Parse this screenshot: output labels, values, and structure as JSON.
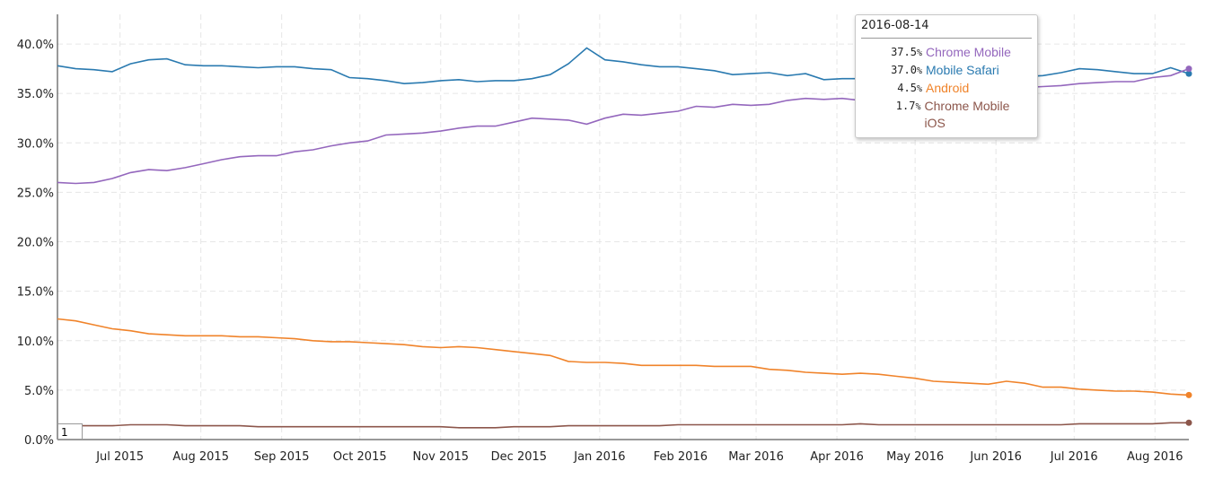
{
  "chart_data": {
    "type": "line",
    "title": "",
    "xlabel": "",
    "ylabel": "",
    "ylim": [
      0,
      43
    ],
    "yticks": [
      "0.0%",
      "5.0%",
      "10.0%",
      "15.0%",
      "20.0%",
      "25.0%",
      "30.0%",
      "35.0%",
      "40.0%"
    ],
    "ytick_values": [
      0,
      5,
      10,
      15,
      20,
      25,
      30,
      35,
      40
    ],
    "xlim": [
      "2015-06-07",
      "2016-08-14"
    ],
    "xticks": [
      {
        "label": "Jul 2015",
        "date": "2015-07-01"
      },
      {
        "label": "Aug 2015",
        "date": "2015-08-01"
      },
      {
        "label": "Sep 2015",
        "date": "2015-09-01"
      },
      {
        "label": "Oct 2015",
        "date": "2015-10-01"
      },
      {
        "label": "Nov 2015",
        "date": "2015-11-01"
      },
      {
        "label": "Dec 2015",
        "date": "2015-12-01"
      },
      {
        "label": "Jan 2016",
        "date": "2016-01-01"
      },
      {
        "label": "Feb 2016",
        "date": "2016-02-01"
      },
      {
        "label": "Mar 2016",
        "date": "2016-03-01"
      },
      {
        "label": "Apr 2016",
        "date": "2016-04-01"
      },
      {
        "label": "May 2016",
        "date": "2016-05-01"
      },
      {
        "label": "Jun 2016",
        "date": "2016-06-01"
      },
      {
        "label": "Jul 2016",
        "date": "2016-07-01"
      },
      {
        "label": "Aug 2016",
        "date": "2016-08-01"
      }
    ],
    "grid": true,
    "series": [
      {
        "name": "Mobile Safari",
        "color": "#2a7ab0",
        "points": [
          [
            "2015-06-07",
            37.8
          ],
          [
            "2015-06-14",
            37.5
          ],
          [
            "2015-06-21",
            37.4
          ],
          [
            "2015-06-28",
            37.2
          ],
          [
            "2015-07-05",
            38.0
          ],
          [
            "2015-07-12",
            38.4
          ],
          [
            "2015-07-19",
            38.5
          ],
          [
            "2015-07-26",
            37.9
          ],
          [
            "2015-08-02",
            37.8
          ],
          [
            "2015-08-09",
            37.8
          ],
          [
            "2015-08-16",
            37.7
          ],
          [
            "2015-08-23",
            37.6
          ],
          [
            "2015-08-30",
            37.7
          ],
          [
            "2015-09-06",
            37.7
          ],
          [
            "2015-09-13",
            37.5
          ],
          [
            "2015-09-20",
            37.4
          ],
          [
            "2015-09-27",
            36.6
          ],
          [
            "2015-10-04",
            36.5
          ],
          [
            "2015-10-11",
            36.3
          ],
          [
            "2015-10-18",
            36.0
          ],
          [
            "2015-10-25",
            36.1
          ],
          [
            "2015-11-01",
            36.3
          ],
          [
            "2015-11-08",
            36.4
          ],
          [
            "2015-11-15",
            36.2
          ],
          [
            "2015-11-22",
            36.3
          ],
          [
            "2015-11-29",
            36.3
          ],
          [
            "2015-12-06",
            36.5
          ],
          [
            "2015-12-13",
            36.9
          ],
          [
            "2015-12-20",
            38.0
          ],
          [
            "2015-12-27",
            39.6
          ],
          [
            "2016-01-03",
            38.4
          ],
          [
            "2016-01-10",
            38.2
          ],
          [
            "2016-01-17",
            37.9
          ],
          [
            "2016-01-24",
            37.7
          ],
          [
            "2016-01-31",
            37.7
          ],
          [
            "2016-02-07",
            37.5
          ],
          [
            "2016-02-14",
            37.3
          ],
          [
            "2016-02-21",
            36.9
          ],
          [
            "2016-02-28",
            37.0
          ],
          [
            "2016-03-06",
            37.1
          ],
          [
            "2016-03-13",
            36.8
          ],
          [
            "2016-03-20",
            37.0
          ],
          [
            "2016-03-27",
            36.4
          ],
          [
            "2016-04-03",
            36.5
          ],
          [
            "2016-04-10",
            36.5
          ],
          [
            "2016-04-17",
            36.5
          ],
          [
            "2016-04-24",
            36.6
          ],
          [
            "2016-05-01",
            36.6
          ],
          [
            "2016-05-08",
            36.6
          ],
          [
            "2016-05-15",
            36.7
          ],
          [
            "2016-05-22",
            36.7
          ],
          [
            "2016-05-29",
            36.7
          ],
          [
            "2016-06-05",
            36.8
          ],
          [
            "2016-06-12",
            36.7
          ],
          [
            "2016-06-19",
            36.8
          ],
          [
            "2016-06-26",
            37.1
          ],
          [
            "2016-07-03",
            37.5
          ],
          [
            "2016-07-10",
            37.4
          ],
          [
            "2016-07-17",
            37.2
          ],
          [
            "2016-07-24",
            37.0
          ],
          [
            "2016-07-31",
            37.0
          ],
          [
            "2016-08-07",
            37.6
          ],
          [
            "2016-08-14",
            37.0
          ]
        ]
      },
      {
        "name": "Chrome Mobile",
        "color": "#9467bd",
        "points": [
          [
            "2015-06-07",
            26.0
          ],
          [
            "2015-06-14",
            25.9
          ],
          [
            "2015-06-21",
            26.0
          ],
          [
            "2015-06-28",
            26.4
          ],
          [
            "2015-07-05",
            27.0
          ],
          [
            "2015-07-12",
            27.3
          ],
          [
            "2015-07-19",
            27.2
          ],
          [
            "2015-07-26",
            27.5
          ],
          [
            "2015-08-02",
            27.9
          ],
          [
            "2015-08-09",
            28.3
          ],
          [
            "2015-08-16",
            28.6
          ],
          [
            "2015-08-23",
            28.7
          ],
          [
            "2015-08-30",
            28.7
          ],
          [
            "2015-09-06",
            29.1
          ],
          [
            "2015-09-13",
            29.3
          ],
          [
            "2015-09-20",
            29.7
          ],
          [
            "2015-09-27",
            30.0
          ],
          [
            "2015-10-04",
            30.2
          ],
          [
            "2015-10-11",
            30.8
          ],
          [
            "2015-10-18",
            30.9
          ],
          [
            "2015-10-25",
            31.0
          ],
          [
            "2015-11-01",
            31.2
          ],
          [
            "2015-11-08",
            31.5
          ],
          [
            "2015-11-15",
            31.7
          ],
          [
            "2015-11-22",
            31.7
          ],
          [
            "2015-11-29",
            32.1
          ],
          [
            "2015-12-06",
            32.5
          ],
          [
            "2015-12-13",
            32.4
          ],
          [
            "2015-12-20",
            32.3
          ],
          [
            "2015-12-27",
            31.9
          ],
          [
            "2016-01-03",
            32.5
          ],
          [
            "2016-01-10",
            32.9
          ],
          [
            "2016-01-17",
            32.8
          ],
          [
            "2016-01-24",
            33.0
          ],
          [
            "2016-01-31",
            33.2
          ],
          [
            "2016-02-07",
            33.7
          ],
          [
            "2016-02-14",
            33.6
          ],
          [
            "2016-02-21",
            33.9
          ],
          [
            "2016-02-28",
            33.8
          ],
          [
            "2016-03-06",
            33.9
          ],
          [
            "2016-03-13",
            34.3
          ],
          [
            "2016-03-20",
            34.5
          ],
          [
            "2016-03-27",
            34.4
          ],
          [
            "2016-04-03",
            34.5
          ],
          [
            "2016-04-10",
            34.3
          ],
          [
            "2016-04-17",
            34.5
          ],
          [
            "2016-04-24",
            34.7
          ],
          [
            "2016-05-01",
            34.8
          ],
          [
            "2016-05-08",
            35.0
          ],
          [
            "2016-05-15",
            35.1
          ],
          [
            "2016-05-22",
            35.3
          ],
          [
            "2016-05-29",
            35.4
          ],
          [
            "2016-06-05",
            35.5
          ],
          [
            "2016-06-12",
            35.6
          ],
          [
            "2016-06-19",
            35.7
          ],
          [
            "2016-06-26",
            35.8
          ],
          [
            "2016-07-03",
            36.0
          ],
          [
            "2016-07-10",
            36.1
          ],
          [
            "2016-07-17",
            36.2
          ],
          [
            "2016-07-24",
            36.2
          ],
          [
            "2016-07-31",
            36.6
          ],
          [
            "2016-08-07",
            36.8
          ],
          [
            "2016-08-14",
            37.5
          ]
        ]
      },
      {
        "name": "Android",
        "color": "#f0832a",
        "points": [
          [
            "2015-06-07",
            12.2
          ],
          [
            "2015-06-14",
            12.0
          ],
          [
            "2015-06-21",
            11.6
          ],
          [
            "2015-06-28",
            11.2
          ],
          [
            "2015-07-05",
            11.0
          ],
          [
            "2015-07-12",
            10.7
          ],
          [
            "2015-07-19",
            10.6
          ],
          [
            "2015-07-26",
            10.5
          ],
          [
            "2015-08-02",
            10.5
          ],
          [
            "2015-08-09",
            10.5
          ],
          [
            "2015-08-16",
            10.4
          ],
          [
            "2015-08-23",
            10.4
          ],
          [
            "2015-08-30",
            10.3
          ],
          [
            "2015-09-06",
            10.2
          ],
          [
            "2015-09-13",
            10.0
          ],
          [
            "2015-09-20",
            9.9
          ],
          [
            "2015-09-27",
            9.9
          ],
          [
            "2015-10-04",
            9.8
          ],
          [
            "2015-10-11",
            9.7
          ],
          [
            "2015-10-18",
            9.6
          ],
          [
            "2015-10-25",
            9.4
          ],
          [
            "2015-11-01",
            9.3
          ],
          [
            "2015-11-08",
            9.4
          ],
          [
            "2015-11-15",
            9.3
          ],
          [
            "2015-11-22",
            9.1
          ],
          [
            "2015-11-29",
            8.9
          ],
          [
            "2015-12-06",
            8.7
          ],
          [
            "2015-12-13",
            8.5
          ],
          [
            "2015-12-20",
            7.9
          ],
          [
            "2015-12-27",
            7.8
          ],
          [
            "2016-01-03",
            7.8
          ],
          [
            "2016-01-10",
            7.7
          ],
          [
            "2016-01-17",
            7.5
          ],
          [
            "2016-01-24",
            7.5
          ],
          [
            "2016-01-31",
            7.5
          ],
          [
            "2016-02-07",
            7.5
          ],
          [
            "2016-02-14",
            7.4
          ],
          [
            "2016-02-21",
            7.4
          ],
          [
            "2016-02-28",
            7.4
          ],
          [
            "2016-03-06",
            7.1
          ],
          [
            "2016-03-13",
            7.0
          ],
          [
            "2016-03-20",
            6.8
          ],
          [
            "2016-03-27",
            6.7
          ],
          [
            "2016-04-03",
            6.6
          ],
          [
            "2016-04-10",
            6.7
          ],
          [
            "2016-04-17",
            6.6
          ],
          [
            "2016-04-24",
            6.4
          ],
          [
            "2016-05-01",
            6.2
          ],
          [
            "2016-05-08",
            5.9
          ],
          [
            "2016-05-15",
            5.8
          ],
          [
            "2016-05-22",
            5.7
          ],
          [
            "2016-05-29",
            5.6
          ],
          [
            "2016-06-05",
            5.9
          ],
          [
            "2016-06-12",
            5.7
          ],
          [
            "2016-06-19",
            5.3
          ],
          [
            "2016-06-26",
            5.3
          ],
          [
            "2016-07-03",
            5.1
          ],
          [
            "2016-07-10",
            5.0
          ],
          [
            "2016-07-17",
            4.9
          ],
          [
            "2016-07-24",
            4.9
          ],
          [
            "2016-07-31",
            4.8
          ],
          [
            "2016-08-07",
            4.6
          ],
          [
            "2016-08-14",
            4.5
          ]
        ]
      },
      {
        "name": "Chrome Mobile iOS",
        "color": "#8c564b",
        "points": [
          [
            "2015-06-07",
            1.4
          ],
          [
            "2015-06-14",
            1.4
          ],
          [
            "2015-06-21",
            1.4
          ],
          [
            "2015-06-28",
            1.4
          ],
          [
            "2015-07-05",
            1.5
          ],
          [
            "2015-07-12",
            1.5
          ],
          [
            "2015-07-19",
            1.5
          ],
          [
            "2015-07-26",
            1.4
          ],
          [
            "2015-08-02",
            1.4
          ],
          [
            "2015-08-09",
            1.4
          ],
          [
            "2015-08-16",
            1.4
          ],
          [
            "2015-08-23",
            1.3
          ],
          [
            "2015-08-30",
            1.3
          ],
          [
            "2015-09-06",
            1.3
          ],
          [
            "2015-09-13",
            1.3
          ],
          [
            "2015-09-20",
            1.3
          ],
          [
            "2015-09-27",
            1.3
          ],
          [
            "2015-10-04",
            1.3
          ],
          [
            "2015-10-11",
            1.3
          ],
          [
            "2015-10-18",
            1.3
          ],
          [
            "2015-10-25",
            1.3
          ],
          [
            "2015-11-01",
            1.3
          ],
          [
            "2015-11-08",
            1.2
          ],
          [
            "2015-11-15",
            1.2
          ],
          [
            "2015-11-22",
            1.2
          ],
          [
            "2015-11-29",
            1.3
          ],
          [
            "2015-12-06",
            1.3
          ],
          [
            "2015-12-13",
            1.3
          ],
          [
            "2015-12-20",
            1.4
          ],
          [
            "2015-12-27",
            1.4
          ],
          [
            "2016-01-03",
            1.4
          ],
          [
            "2016-01-10",
            1.4
          ],
          [
            "2016-01-17",
            1.4
          ],
          [
            "2016-01-24",
            1.4
          ],
          [
            "2016-01-31",
            1.5
          ],
          [
            "2016-02-07",
            1.5
          ],
          [
            "2016-02-14",
            1.5
          ],
          [
            "2016-02-21",
            1.5
          ],
          [
            "2016-02-28",
            1.5
          ],
          [
            "2016-03-06",
            1.5
          ],
          [
            "2016-03-13",
            1.5
          ],
          [
            "2016-03-20",
            1.5
          ],
          [
            "2016-03-27",
            1.5
          ],
          [
            "2016-04-03",
            1.5
          ],
          [
            "2016-04-10",
            1.6
          ],
          [
            "2016-04-17",
            1.5
          ],
          [
            "2016-04-24",
            1.5
          ],
          [
            "2016-05-01",
            1.5
          ],
          [
            "2016-05-08",
            1.5
          ],
          [
            "2016-05-15",
            1.5
          ],
          [
            "2016-05-22",
            1.5
          ],
          [
            "2016-05-29",
            1.5
          ],
          [
            "2016-06-05",
            1.5
          ],
          [
            "2016-06-12",
            1.5
          ],
          [
            "2016-06-19",
            1.5
          ],
          [
            "2016-06-26",
            1.5
          ],
          [
            "2016-07-03",
            1.6
          ],
          [
            "2016-07-10",
            1.6
          ],
          [
            "2016-07-17",
            1.6
          ],
          [
            "2016-07-24",
            1.6
          ],
          [
            "2016-07-31",
            1.6
          ],
          [
            "2016-08-07",
            1.7
          ],
          [
            "2016-08-14",
            1.7
          ]
        ]
      }
    ]
  },
  "tooltip": {
    "date": "2016-08-14",
    "rows": [
      {
        "value": "37.5",
        "unit": "%",
        "name": "Chrome Mobile",
        "color": "#9467bd"
      },
      {
        "value": "37.0",
        "unit": "%",
        "name": "Mobile Safari",
        "color": "#2a7ab0"
      },
      {
        "value": "4.5",
        "unit": "%",
        "name": "Android",
        "color": "#f0832a"
      },
      {
        "value": "1.7",
        "unit": "%",
        "name": "Chrome Mobile iOS",
        "color": "#8c564b"
      }
    ]
  },
  "range_input": {
    "value": "1"
  }
}
